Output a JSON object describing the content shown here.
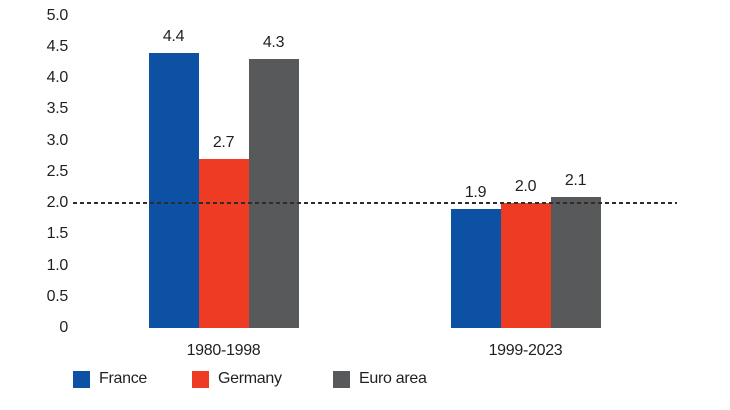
{
  "chart_data": {
    "type": "bar",
    "title": "",
    "xlabel": "",
    "ylabel": "",
    "categories": [
      "1980-1998",
      "1999-2023"
    ],
    "series": [
      {
        "name": "France",
        "color": "#0c51a4",
        "values": [
          4.4,
          1.9
        ]
      },
      {
        "name": "Germany",
        "color": "#ee3b23",
        "values": [
          2.7,
          2.0
        ]
      },
      {
        "name": "Euro area",
        "color": "#58595b",
        "values": [
          4.3,
          2.1
        ]
      }
    ],
    "value_labels": [
      [
        "4.4",
        "2.7",
        "4.3"
      ],
      [
        "1.9",
        "2.0",
        "2.1"
      ]
    ],
    "ylim": [
      0,
      5.0
    ],
    "yticks": [
      "5.0",
      "4.5",
      "4.0",
      "3.5",
      "3.0",
      "2.5",
      "2.0",
      "1.5",
      "1.0",
      "0.5",
      "0"
    ],
    "ytick_values": [
      5.0,
      4.5,
      4.0,
      3.5,
      3.0,
      2.5,
      2.0,
      1.5,
      1.0,
      0.5,
      0
    ],
    "reference_line": {
      "value": 2.0,
      "style": "dashed",
      "color": "#2e2d2c"
    },
    "grid": false,
    "legend_position": "bottom",
    "text_color": "#231f20",
    "background_color": "#ffffff"
  }
}
